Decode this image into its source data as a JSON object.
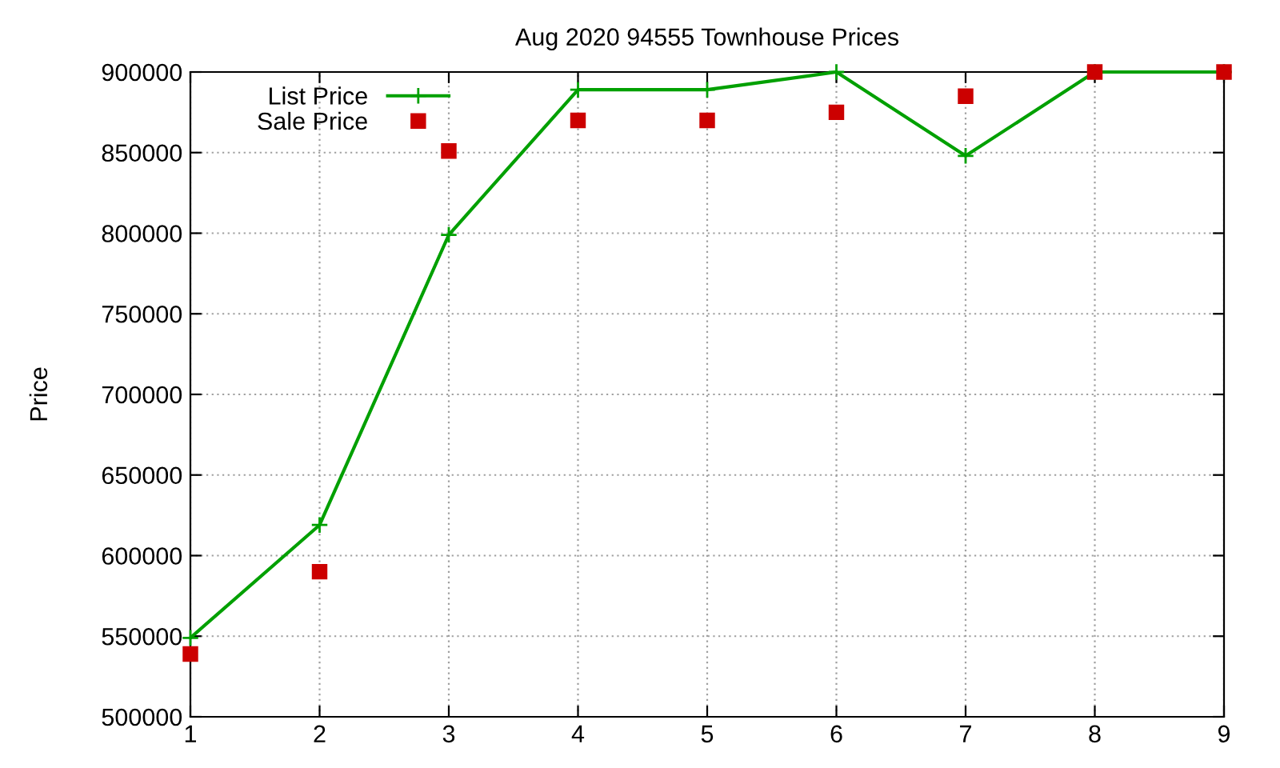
{
  "chart_data": {
    "type": "line",
    "title": "Aug 2020 94555 Townhouse Prices",
    "ylabel": "Price",
    "x": [
      1,
      2,
      3,
      4,
      5,
      6,
      7,
      8,
      9
    ],
    "series": [
      {
        "name": "List Price",
        "color": "#00a000",
        "marker": "cross",
        "values": [
          549000,
          619000,
          799000,
          889000,
          889000,
          900000,
          848000,
          900000,
          900000
        ]
      },
      {
        "name": "Sale Price",
        "type": "scatter",
        "color": "#cc0000",
        "marker": "square",
        "values": [
          539000,
          590000,
          851000,
          870000,
          870000,
          875000,
          885000,
          900000,
          900000
        ]
      }
    ],
    "xlim": [
      1,
      9
    ],
    "xticks": [
      1,
      2,
      3,
      4,
      5,
      6,
      7,
      8,
      9
    ],
    "ylim": [
      500000,
      900000
    ],
    "yticks": [
      500000,
      550000,
      600000,
      650000,
      700000,
      750000,
      800000,
      850000,
      900000
    ],
    "grid": true,
    "legend": "top left"
  }
}
